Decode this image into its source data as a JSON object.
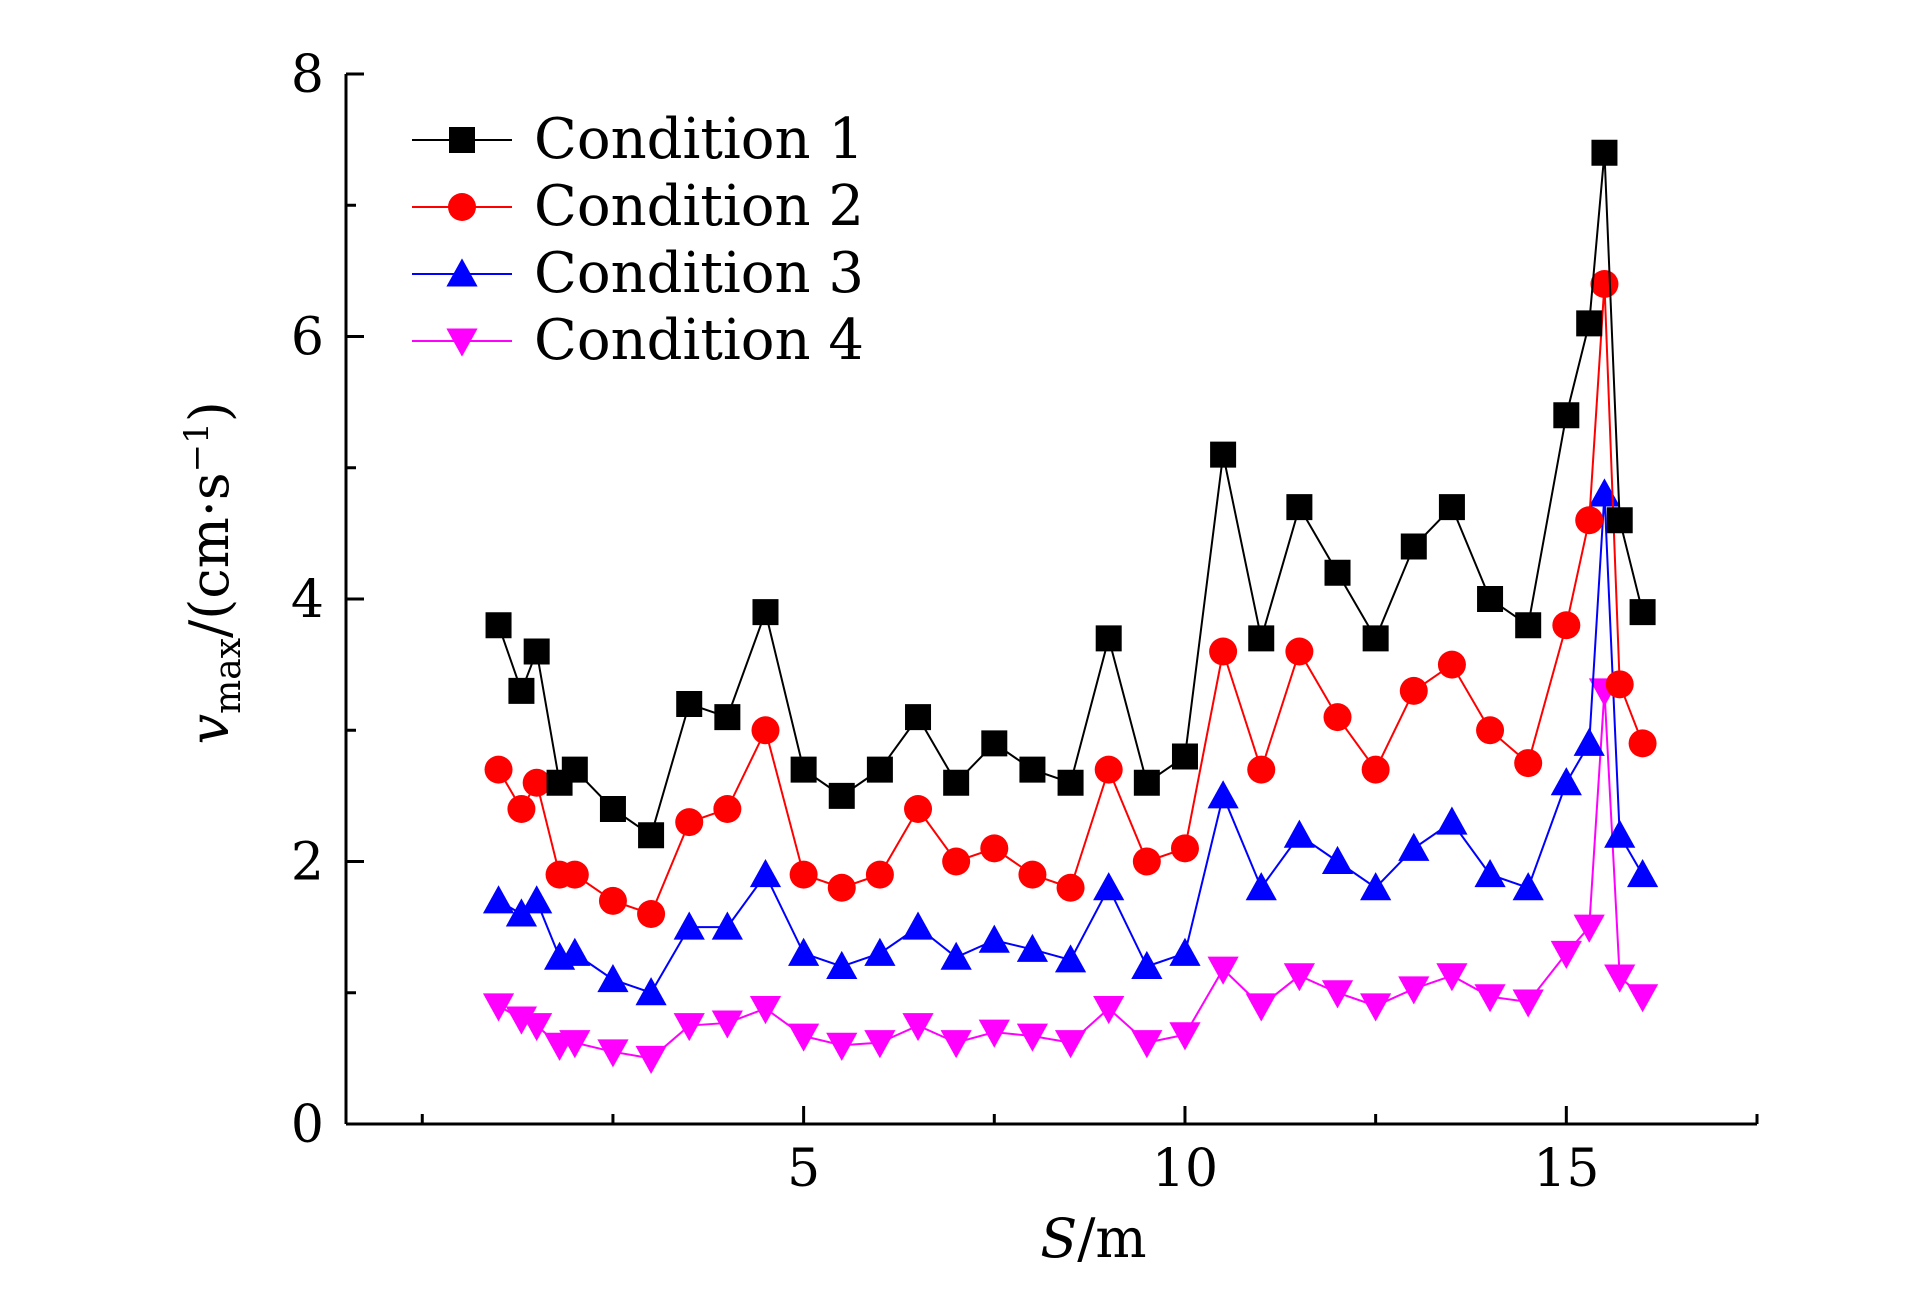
{
  "chart_data": {
    "type": "line",
    "xlabel": "S/m",
    "ylabel": "v_max/(cm·s⁻¹)",
    "ylabel_parts": {
      "var": "v",
      "sub": "max",
      "unit_pre": "/(cm·s",
      "unit_sup": "−1",
      "unit_post": ")"
    },
    "xlabel_parts": {
      "var": "S",
      "unit": "/m"
    },
    "xlim": [
      -1,
      17.5
    ],
    "ylim": [
      0,
      8
    ],
    "x_ticks": [
      5,
      10,
      15
    ],
    "y_ticks": [
      0,
      2,
      4,
      6,
      8
    ],
    "legend_position": "top-left",
    "x": [
      1,
      1.3,
      1.5,
      1.8,
      2,
      2.5,
      3,
      3.5,
      4,
      4.5,
      5,
      5.5,
      6,
      6.5,
      7,
      7.5,
      8,
      8.5,
      9,
      9.5,
      10,
      10.5,
      11,
      11.5,
      12,
      12.5,
      13,
      13.5,
      14,
      14.5,
      15,
      15.3,
      15.5,
      15.7,
      16
    ],
    "series": [
      {
        "name": "Condition 1",
        "color": "#000000",
        "marker": "square",
        "values": [
          3.8,
          3.3,
          3.6,
          2.6,
          2.7,
          2.4,
          2.2,
          3.2,
          3.1,
          3.9,
          2.7,
          2.5,
          2.7,
          3.1,
          2.6,
          2.9,
          2.7,
          2.6,
          3.7,
          2.6,
          2.8,
          5.1,
          3.7,
          4.7,
          4.2,
          3.7,
          4.4,
          4.7,
          4.0,
          3.8,
          5.4,
          6.1,
          7.4,
          4.6,
          3.9
        ]
      },
      {
        "name": "Condition 2",
        "color": "#ff0000",
        "marker": "circle",
        "values": [
          2.7,
          2.4,
          2.6,
          1.9,
          1.9,
          1.7,
          1.6,
          2.3,
          2.4,
          3.0,
          1.9,
          1.8,
          1.9,
          2.4,
          2.0,
          2.1,
          1.9,
          1.8,
          2.7,
          2.0,
          2.1,
          3.6,
          2.7,
          3.6,
          3.1,
          2.7,
          3.3,
          3.5,
          3.0,
          2.75,
          3.8,
          4.6,
          6.4,
          3.35,
          2.9
        ]
      },
      {
        "name": "Condition 3",
        "color": "#0000ff",
        "marker": "triangle-up",
        "values": [
          1.7,
          1.6,
          1.7,
          1.27,
          1.3,
          1.1,
          1.0,
          1.5,
          1.5,
          1.9,
          1.3,
          1.2,
          1.3,
          1.5,
          1.27,
          1.4,
          1.33,
          1.25,
          1.8,
          1.2,
          1.3,
          2.5,
          1.8,
          2.2,
          2.0,
          1.8,
          2.1,
          2.3,
          1.9,
          1.8,
          2.6,
          2.9,
          4.8,
          2.2,
          1.9
        ]
      },
      {
        "name": "Condition 4",
        "color": "#ff00ff",
        "marker": "triangle-down",
        "values": [
          0.9,
          0.8,
          0.75,
          0.6,
          0.62,
          0.55,
          0.5,
          0.75,
          0.77,
          0.88,
          0.67,
          0.6,
          0.62,
          0.75,
          0.62,
          0.7,
          0.67,
          0.62,
          0.88,
          0.62,
          0.68,
          1.18,
          0.9,
          1.13,
          1.0,
          0.9,
          1.03,
          1.13,
          0.97,
          0.93,
          1.3,
          1.5,
          3.3,
          1.12,
          0.97
        ]
      }
    ]
  }
}
